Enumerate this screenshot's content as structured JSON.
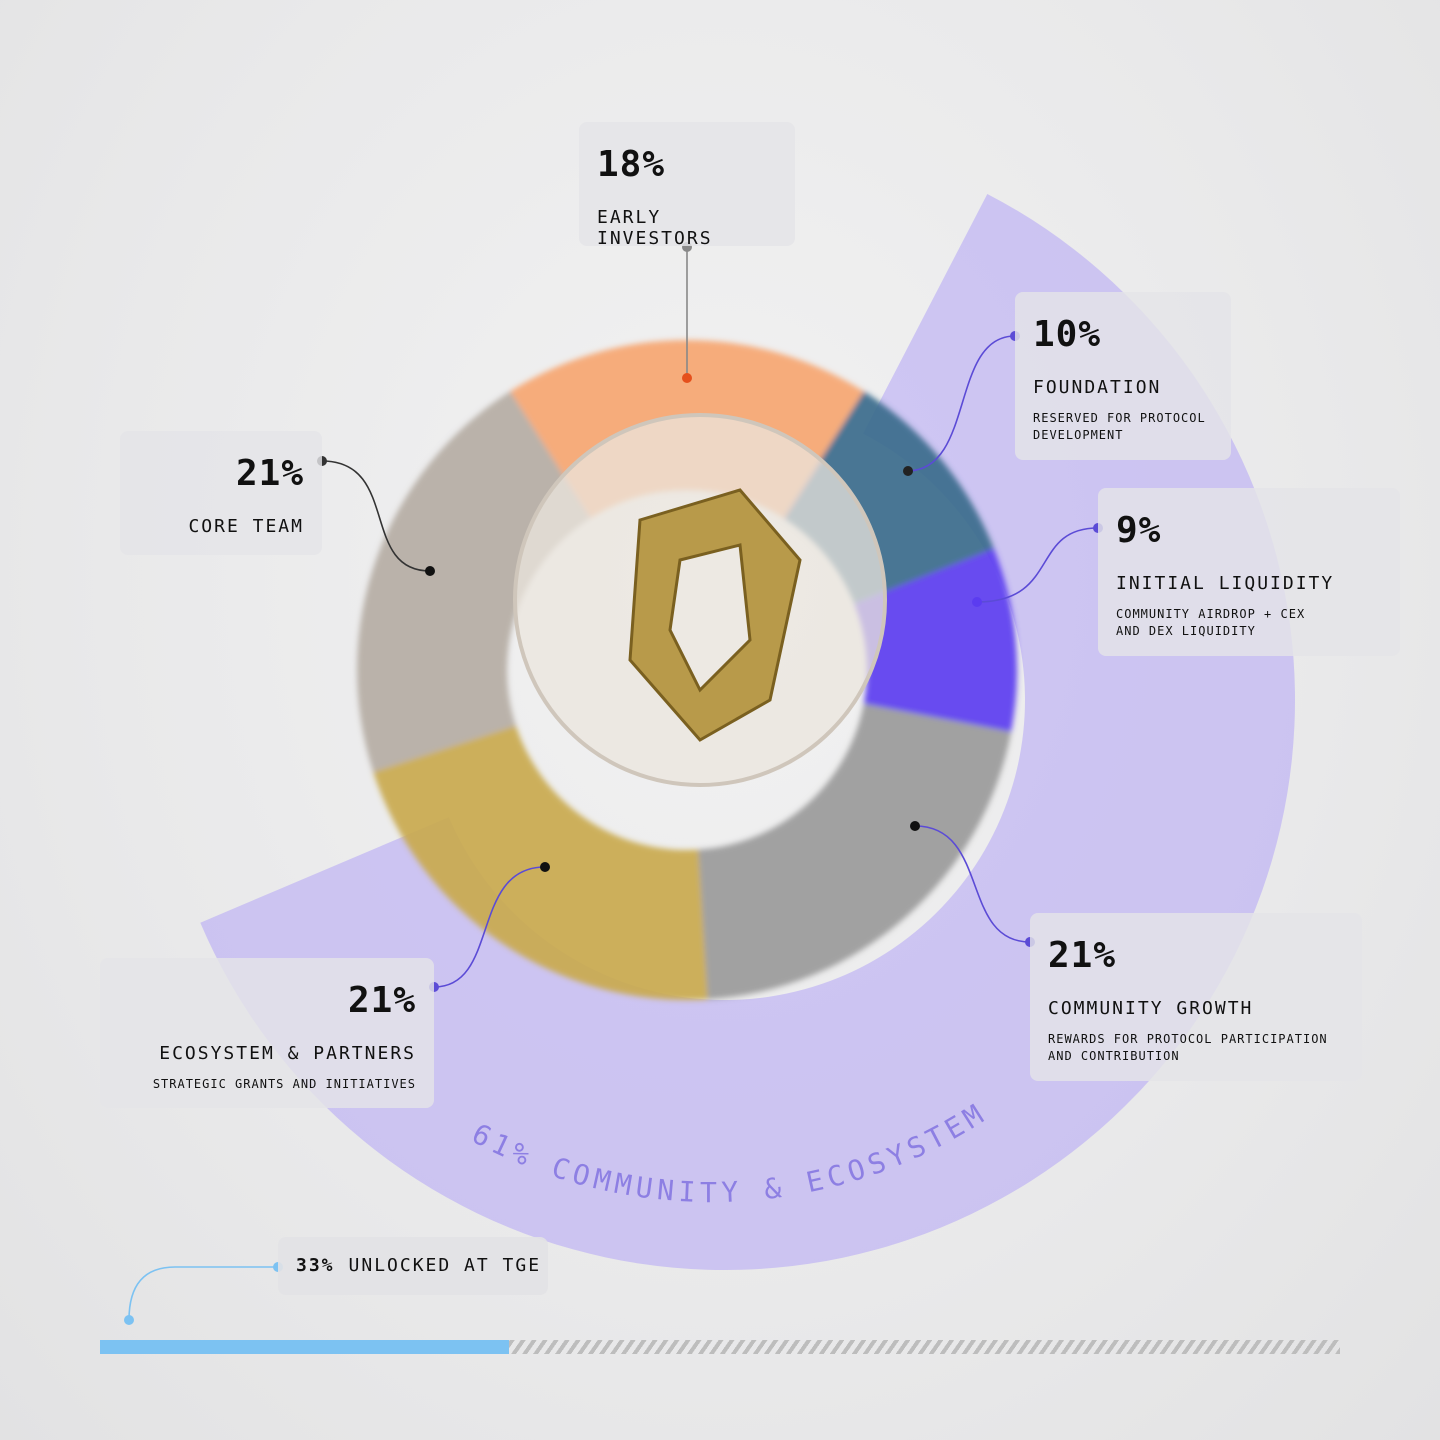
{
  "chart_data": {
    "type": "pie",
    "title": "",
    "slices": [
      {
        "label": "EARLY INVESTORS",
        "value": 18,
        "display": "18%",
        "description": "",
        "color": "#f6a672"
      },
      {
        "label": "FOUNDATION",
        "value": 10,
        "display": "10%",
        "description": "RESERVED FOR PROTOCOL\nDEVELOPMENT",
        "color": "#3b6b8c"
      },
      {
        "label": "INITIAL LIQUIDITY",
        "value": 9,
        "display": "9%",
        "description": "COMMUNITY AIRDROP + CEX\nAND DEX LIQUIDITY",
        "color": "#5b3cf0"
      },
      {
        "label": "COMMUNITY GROWTH",
        "value": 21,
        "display": "21%",
        "description": "REWARDS FOR PROTOCOL PARTICIPATION\nAND CONTRIBUTION",
        "color": "#9a9a9a"
      },
      {
        "label": "ECOSYSTEM & PARTNERS",
        "value": 21,
        "display": "21%",
        "description": "STRATEGIC GRANTS AND INITIATIVES",
        "color": "#c9a94e"
      },
      {
        "label": "CORE TEAM",
        "value": 21,
        "display": "21%",
        "description": "",
        "color": "#b5aca4"
      }
    ],
    "group": {
      "label": "61% COMMUNITY & ECOSYSTEM",
      "value": 61,
      "color": "#b3a4f5"
    },
    "unlock": {
      "label": "UNLOCKED AT TGE",
      "value": 33,
      "display": "33%",
      "color": "#7cc2f2"
    }
  }
}
